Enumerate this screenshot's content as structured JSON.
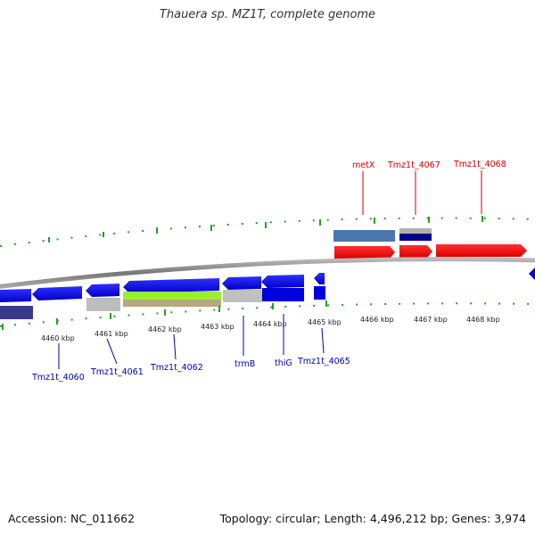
{
  "title": "Thauera sp. MZ1T, complete genome",
  "footer": {
    "accession": "Accession: NC_011662",
    "summary": "Topology: circular; Length: 4,496,212 bp; Genes: 3,974"
  },
  "ruler": {
    "labels": [
      "4460 kbp",
      "4461 kbp",
      "4462 kbp",
      "4463 kbp",
      "4464 kbp",
      "4465 kbp",
      "4466 kbp",
      "4467 kbp",
      "4468 kbp"
    ]
  },
  "genes": {
    "forward": [
      "metX",
      "Tmz1t_4067",
      "Tmz1t_4068"
    ],
    "reverse": [
      "Tmz1t_4060",
      "Tmz1t_4061",
      "Tmz1t_4062",
      "trmB",
      "thiG",
      "Tmz1t_4065"
    ]
  },
  "colors": {
    "forward_label": "#cc0000",
    "reverse_label": "#0000aa",
    "cds_forward": "#ff0000",
    "cds_reverse": "#0000ee",
    "backbone": "#888888",
    "ticks": "#2a9a2a"
  }
}
